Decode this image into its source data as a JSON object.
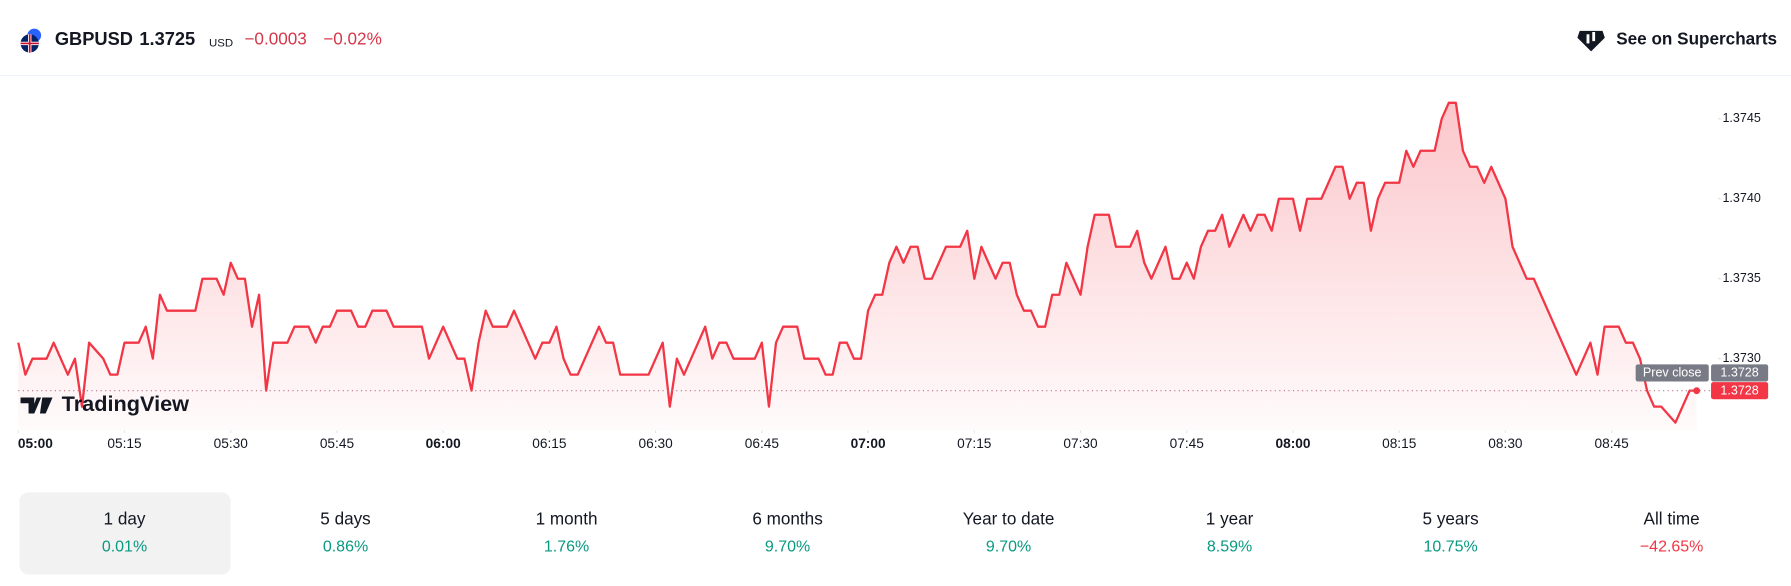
{
  "header": {
    "symbol": "GBPUSD",
    "price": "1.3725",
    "currency": "USD",
    "change": "−0.0003",
    "change_percent": "−0.02%",
    "link": "See on Supercharts"
  },
  "logo": "TradingView",
  "chart_data": {
    "type": "line",
    "color": "#f23645",
    "x": [
      "05:00",
      "05:01",
      "05:02",
      "05:04",
      "05:05",
      "05:07",
      "05:08",
      "05:09",
      "05:10",
      "05:12",
      "05:13",
      "05:14",
      "05:15",
      "05:17",
      "05:18",
      "05:19",
      "05:20",
      "05:21",
      "05:25",
      "05:26",
      "05:28",
      "05:29",
      "05:30",
      "05:31",
      "05:32",
      "05:33",
      "05:34",
      "05:35",
      "05:36",
      "05:38",
      "05:39",
      "05:41",
      "05:42",
      "05:43",
      "05:44",
      "05:45",
      "05:47",
      "05:48",
      "05:49",
      "05:50",
      "05:52",
      "05:53",
      "05:57",
      "05:58",
      "05:59",
      "06:00",
      "06:01",
      "06:02",
      "06:03",
      "06:04",
      "06:05",
      "06:06",
      "06:07",
      "06:09",
      "06:10",
      "06:11",
      "06:12",
      "06:13",
      "06:14",
      "06:15",
      "06:16",
      "06:17",
      "06:18",
      "06:19",
      "06:20",
      "06:21",
      "06:22",
      "06:23",
      "06:24",
      "06:25",
      "06:29",
      "06:30",
      "06:31",
      "06:32",
      "06:33",
      "06:34",
      "06:35",
      "06:36",
      "06:37",
      "06:38",
      "06:39",
      "06:40",
      "06:41",
      "06:44",
      "06:45",
      "06:46",
      "06:47",
      "06:48",
      "06:50",
      "06:51",
      "06:53",
      "06:54",
      "06:55",
      "06:56",
      "06:57",
      "06:58",
      "06:59",
      "07:00",
      "07:01",
      "07:02",
      "07:03",
      "07:04",
      "07:05",
      "07:06",
      "07:07",
      "07:08",
      "07:09",
      "07:10",
      "07:11",
      "07:13",
      "07:14",
      "07:15",
      "07:16",
      "07:17",
      "07:18",
      "07:19",
      "07:20",
      "07:21",
      "07:22",
      "07:23",
      "07:24",
      "07:25",
      "07:26",
      "07:27",
      "07:28",
      "07:29",
      "07:30",
      "07:31",
      "07:32",
      "07:34",
      "07:35",
      "07:37",
      "07:38",
      "07:39",
      "07:40",
      "07:41",
      "07:42",
      "07:43",
      "07:44",
      "07:45",
      "07:46",
      "07:47",
      "07:48",
      "07:49",
      "07:50",
      "07:51",
      "07:52",
      "07:53",
      "07:54",
      "07:55",
      "07:56",
      "07:57",
      "07:58",
      "08:00",
      "08:01",
      "08:02",
      "08:04",
      "08:05",
      "08:06",
      "08:07",
      "08:08",
      "08:09",
      "08:10",
      "08:11",
      "08:12",
      "08:13",
      "08:15",
      "08:16",
      "08:17",
      "08:18",
      "08:20",
      "08:21",
      "08:22",
      "08:23",
      "08:24",
      "08:25",
      "08:26",
      "08:27",
      "08:28",
      "08:30",
      "08:31",
      "08:33",
      "08:34",
      "08:40",
      "08:42",
      "08:43",
      "08:44",
      "08:46",
      "08:47",
      "08:48",
      "08:49",
      "08:50",
      "08:51",
      "08:52",
      "08:54",
      "08:55",
      "08:56",
      "08:57"
    ],
    "values": [
      1.3731,
      1.3729,
      1.373,
      1.373,
      1.3731,
      1.3729,
      1.373,
      1.3727,
      1.3731,
      1.373,
      1.3729,
      1.3729,
      1.3731,
      1.3731,
      1.3732,
      1.373,
      1.3734,
      1.3733,
      1.3733,
      1.3735,
      1.3735,
      1.3734,
      1.3736,
      1.3735,
      1.3735,
      1.3732,
      1.3734,
      1.3728,
      1.3731,
      1.3731,
      1.3732,
      1.3732,
      1.3731,
      1.3732,
      1.3732,
      1.3733,
      1.3733,
      1.3732,
      1.3732,
      1.3733,
      1.3733,
      1.3732,
      1.3732,
      1.373,
      1.3731,
      1.3732,
      1.3731,
      1.373,
      1.373,
      1.3728,
      1.3731,
      1.3733,
      1.3732,
      1.3732,
      1.3733,
      1.3732,
      1.3731,
      1.373,
      1.3731,
      1.3731,
      1.3732,
      1.373,
      1.3729,
      1.3729,
      1.373,
      1.3731,
      1.3732,
      1.3731,
      1.3731,
      1.3729,
      1.3729,
      1.373,
      1.3731,
      1.3727,
      1.373,
      1.3729,
      1.373,
      1.3731,
      1.3732,
      1.373,
      1.3731,
      1.3731,
      1.373,
      1.373,
      1.3731,
      1.3727,
      1.3731,
      1.3732,
      1.3732,
      1.373,
      1.373,
      1.3729,
      1.3729,
      1.3731,
      1.3731,
      1.373,
      1.373,
      1.3733,
      1.3734,
      1.3734,
      1.3736,
      1.3737,
      1.3736,
      1.3737,
      1.3737,
      1.3735,
      1.3735,
      1.3736,
      1.3737,
      1.3737,
      1.3738,
      1.3735,
      1.3737,
      1.3736,
      1.3735,
      1.3736,
      1.3736,
      1.3734,
      1.3733,
      1.3733,
      1.3732,
      1.3732,
      1.3734,
      1.3734,
      1.3736,
      1.3735,
      1.3734,
      1.3737,
      1.3739,
      1.3739,
      1.3737,
      1.3737,
      1.3738,
      1.3736,
      1.3735,
      1.3736,
      1.3737,
      1.3735,
      1.3735,
      1.3736,
      1.3735,
      1.3737,
      1.3738,
      1.3738,
      1.3739,
      1.3737,
      1.3738,
      1.3739,
      1.3738,
      1.3739,
      1.3739,
      1.3738,
      1.374,
      1.374,
      1.3738,
      1.374,
      1.374,
      1.3741,
      1.3742,
      1.3742,
      1.374,
      1.3741,
      1.3741,
      1.3738,
      1.374,
      1.3741,
      1.3741,
      1.3743,
      1.3742,
      1.3743,
      1.3743,
      1.3745,
      1.3746,
      1.3746,
      1.3743,
      1.3742,
      1.3742,
      1.3741,
      1.3742,
      1.374,
      1.3737,
      1.3735,
      1.3735,
      1.3729,
      1.3731,
      1.3729,
      1.3732,
      1.3732,
      1.3731,
      1.3731,
      1.373,
      1.3728,
      1.3727,
      1.3727,
      1.3726,
      1.3727,
      1.3728,
      1.3728
    ],
    "xlim": [
      "05:00",
      "09:00"
    ],
    "xticks": [
      "05:00",
      "05:15",
      "05:30",
      "05:45",
      "06:00",
      "06:15",
      "06:30",
      "06:45",
      "07:00",
      "07:15",
      "07:30",
      "07:45",
      "08:00",
      "08:15",
      "08:30",
      "08:45"
    ],
    "ylim": [
      1.37255,
      1.3748
    ],
    "yticks": [
      1.3745,
      {
        "value": 1.374,
        "label": "1.3740"
      },
      1.3735,
      {
        "value": 1.373,
        "label": "1.3730"
      }
    ],
    "prev_close": {
      "label": "Prev close",
      "value": 1.3728
    }
  },
  "periods": [
    {
      "label": "1 day",
      "change": "0.01%"
    },
    {
      "label": "5 days",
      "change": "0.86%"
    },
    {
      "label": "1 month",
      "change": "1.76%"
    },
    {
      "label": "6 months",
      "change": "9.70%"
    },
    {
      "label": "Year to date",
      "change": "9.70%"
    },
    {
      "label": "1 year",
      "change": "8.59%"
    },
    {
      "label": "5 years",
      "change": "10.75%"
    },
    {
      "label": "All time",
      "change": "−42.65%"
    }
  ]
}
